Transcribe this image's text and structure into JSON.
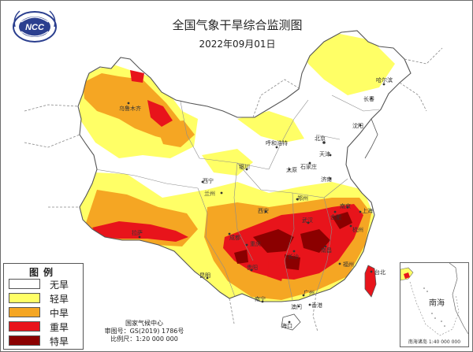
{
  "header": {
    "title": "全国气象干旱综合监测图",
    "date": "2022年09月01日",
    "logo_text": "NCC"
  },
  "legend": {
    "title": "图例",
    "items": [
      {
        "label": "无旱",
        "color": "#ffffff"
      },
      {
        "label": "轻旱",
        "color": "#ffff66"
      },
      {
        "label": "中旱",
        "color": "#f5a623"
      },
      {
        "label": "重旱",
        "color": "#e8141b"
      },
      {
        "label": "特旱",
        "color": "#8b0000"
      }
    ]
  },
  "footer": {
    "agency": "国家气候中心",
    "review_no": "审图号：GS(2019) 1786号",
    "scale": "比例尺：1:20 000 000"
  },
  "inset": {
    "sea_name": "南海",
    "title": "南海诸岛",
    "scale": "1:40 000 000"
  },
  "cities": [
    "哈尔滨",
    "长春",
    "沈阳",
    "北京",
    "天津",
    "石家庄",
    "太原",
    "济南",
    "郑州",
    "西安",
    "兰州",
    "西宁",
    "银川",
    "呼和浩特",
    "乌鲁木齐",
    "拉萨",
    "成都",
    "重庆",
    "贵阳",
    "昆明",
    "南宁",
    "广州",
    "香港",
    "澳门",
    "海口",
    "台北",
    "福州",
    "南昌",
    "长沙",
    "武汉",
    "合肥",
    "南京",
    "上海",
    "杭州"
  ]
}
